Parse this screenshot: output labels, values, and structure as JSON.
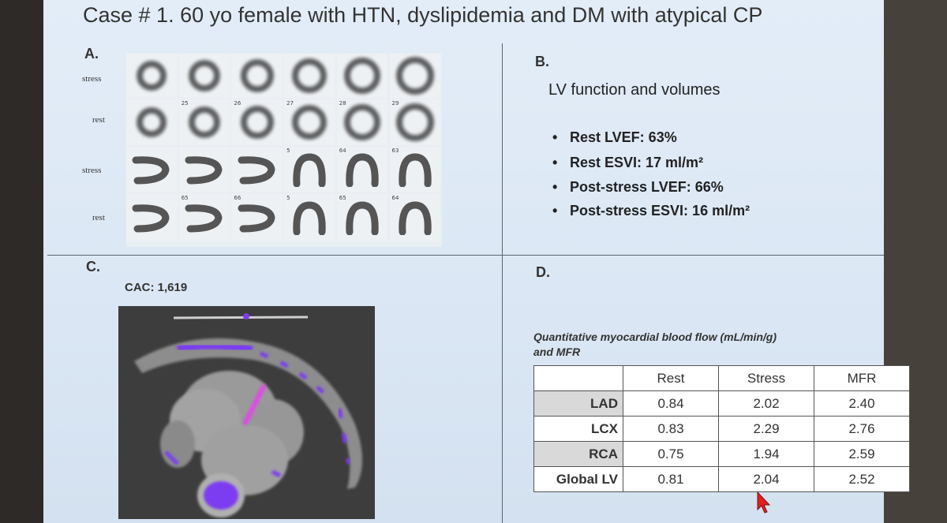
{
  "title": "Case # 1. 60 yo female with HTN, dyslipidemia and DM with atypical CP",
  "panels": {
    "a": "A.",
    "b": "B.",
    "c": "C.",
    "d": "D."
  },
  "panel_a": {
    "row_labels": [
      "stress",
      "rest",
      "stress",
      "rest"
    ],
    "cell_numbers": {
      "row2": [
        "",
        "25",
        "26",
        "27",
        "28",
        "29"
      ],
      "row3": [
        "",
        "",
        "",
        "5",
        "64",
        "63"
      ],
      "row4": [
        "",
        "65",
        "66",
        "5",
        "65",
        "64"
      ]
    }
  },
  "panel_b": {
    "heading": "LV function and volumes",
    "bullets": [
      "Rest LVEF: 63%",
      "Rest ESVI: 17 ml/m²",
      "Post-stress LVEF: 66%",
      "Post-stress ESVI: 16 ml/m²"
    ],
    "bullet_symbol": "•"
  },
  "panel_c": {
    "cac": "CAC: 1,619"
  },
  "panel_d": {
    "caption_line1": "Quantitative myocardial blood flow (mL/min/g)",
    "caption_line2": "and MFR",
    "columns": [
      "Rest",
      "Stress",
      "MFR"
    ],
    "rows": [
      {
        "label": "LAD",
        "rest": "0.84",
        "stress": "2.02",
        "mfr": "2.40"
      },
      {
        "label": "LCX",
        "rest": "0.83",
        "stress": "2.29",
        "mfr": "2.76"
      },
      {
        "label": "RCA",
        "rest": "0.75",
        "stress": "1.94",
        "mfr": "2.59"
      },
      {
        "label": "Global LV",
        "rest": "0.81",
        "stress": "2.04",
        "mfr": "2.52"
      }
    ]
  },
  "colors": {
    "calcium": "#7b3cf0",
    "slide_bg": "#dfe9f6",
    "cursor": "#e02020"
  }
}
